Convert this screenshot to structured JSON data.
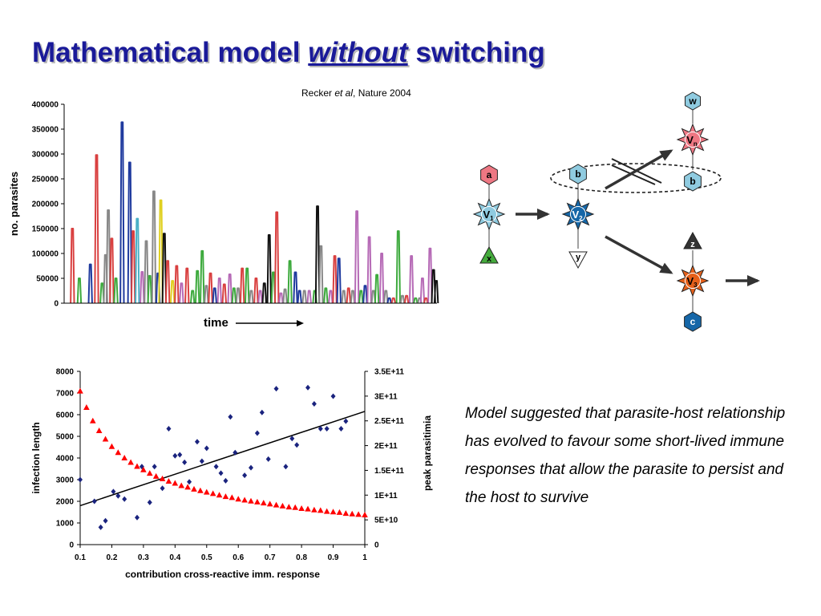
{
  "title": {
    "main": "Mathematical model ",
    "emph": "without",
    "tail": " switching"
  },
  "citation": {
    "author": "Recker ",
    "etal": "et al",
    "journal": ", Nature 2004"
  },
  "summary": "Model suggested that parasite-host relationship has evolved to favour some short-lived immune responses that allow the parasite to persist and the host to survive",
  "diagram": {
    "nodes": [
      {
        "id": "a",
        "label": "a",
        "color": "#ee7783",
        "shape": "hexagon"
      },
      {
        "id": "V1",
        "label": "V",
        "sub": "1",
        "color": "#8fcbe0",
        "shape": "star"
      },
      {
        "id": "x",
        "label": "x",
        "color": "#44aa3c",
        "shape": "triangle"
      },
      {
        "id": "b_left",
        "label": "b",
        "color": "#8fcbe0",
        "shape": "hexagon"
      },
      {
        "id": "V2",
        "label": "V",
        "sub": "2",
        "color": "#1667a8",
        "shape": "star"
      },
      {
        "id": "y",
        "label": "y",
        "color": "#ffffff",
        "shape": "triangle"
      },
      {
        "id": "w",
        "label": "w",
        "color": "#8fcbe0",
        "shape": "hexagon"
      },
      {
        "id": "Vn",
        "label": "V",
        "sub": "n",
        "color": "#ee7783",
        "shape": "star"
      },
      {
        "id": "b_right",
        "label": "b",
        "color": "#8fcbe0",
        "shape": "hexagon"
      },
      {
        "id": "z",
        "label": "z",
        "color": "#333333",
        "shape": "triangle"
      },
      {
        "id": "V3",
        "label": "V",
        "sub": "3",
        "color": "#e5601a",
        "shape": "star"
      },
      {
        "id": "c",
        "label": "c",
        "color": "#1667a8",
        "shape": "hexagon"
      }
    ]
  },
  "chart_data": [
    {
      "type": "line",
      "title": "",
      "xlabel": "time",
      "ylabel": "no. parasites",
      "ylim": [
        0,
        400000
      ],
      "yticks": [
        "400000",
        "350000",
        "300000",
        "250000",
        "200000",
        "150000",
        "100000",
        "50000",
        "0"
      ],
      "xrange": [
        0,
        540
      ],
      "peaks": [
        {
          "x": 12,
          "y": 150000,
          "color": "#d94040"
        },
        {
          "x": 22,
          "y": 50000,
          "color": "#3daa3d"
        },
        {
          "x": 38,
          "y": 78000,
          "color": "#1f3a9e"
        },
        {
          "x": 47,
          "y": 298000,
          "color": "#d94040"
        },
        {
          "x": 55,
          "y": 40000,
          "color": "#3daa3d"
        },
        {
          "x": 60,
          "y": 97000,
          "color": "#888888"
        },
        {
          "x": 64,
          "y": 187000,
          "color": "#888888"
        },
        {
          "x": 69,
          "y": 130000,
          "color": "#d94040"
        },
        {
          "x": 75,
          "y": 50000,
          "color": "#3daa3d"
        },
        {
          "x": 84,
          "y": 364000,
          "color": "#1f3a9e"
        },
        {
          "x": 95,
          "y": 283000,
          "color": "#1f3a9e"
        },
        {
          "x": 100,
          "y": 145000,
          "color": "#d94040"
        },
        {
          "x": 106,
          "y": 170000,
          "color": "#4ab0c6"
        },
        {
          "x": 113,
          "y": 63000,
          "color": "#b66ab6"
        },
        {
          "x": 119,
          "y": 125000,
          "color": "#888888"
        },
        {
          "x": 124,
          "y": 55000,
          "color": "#3daa3d"
        },
        {
          "x": 130,
          "y": 225000,
          "color": "#888888"
        },
        {
          "x": 136,
          "y": 60000,
          "color": "#1f3a9e"
        },
        {
          "x": 140,
          "y": 207000,
          "color": "#e0d020"
        },
        {
          "x": 145,
          "y": 140000,
          "color": "#111111"
        },
        {
          "x": 150,
          "y": 85000,
          "color": "#d94040"
        },
        {
          "x": 157,
          "y": 45000,
          "color": "#e0d020"
        },
        {
          "x": 163,
          "y": 75000,
          "color": "#d94040"
        },
        {
          "x": 170,
          "y": 40000,
          "color": "#b66ab6"
        },
        {
          "x": 178,
          "y": 70000,
          "color": "#d94040"
        },
        {
          "x": 186,
          "y": 25000,
          "color": "#3daa3d"
        },
        {
          "x": 193,
          "y": 65000,
          "color": "#3daa3d"
        },
        {
          "x": 200,
          "y": 105000,
          "color": "#3daa3d"
        },
        {
          "x": 206,
          "y": 35000,
          "color": "#888888"
        },
        {
          "x": 212,
          "y": 60000,
          "color": "#d94040"
        },
        {
          "x": 218,
          "y": 30000,
          "color": "#1f3a9e"
        },
        {
          "x": 225,
          "y": 50000,
          "color": "#b66ab6"
        },
        {
          "x": 232,
          "y": 38000,
          "color": "#d94040"
        },
        {
          "x": 240,
          "y": 58000,
          "color": "#b66ab6"
        },
        {
          "x": 246,
          "y": 30000,
          "color": "#3daa3d"
        },
        {
          "x": 252,
          "y": 30000,
          "color": "#888888"
        },
        {
          "x": 258,
          "y": 70000,
          "color": "#d94040"
        },
        {
          "x": 265,
          "y": 70000,
          "color": "#3daa3d"
        },
        {
          "x": 271,
          "y": 25000,
          "color": "#888888"
        },
        {
          "x": 278,
          "y": 50000,
          "color": "#d94040"
        },
        {
          "x": 284,
          "y": 25000,
          "color": "#b66ab6"
        },
        {
          "x": 290,
          "y": 40000,
          "color": "#111111"
        },
        {
          "x": 297,
          "y": 137000,
          "color": "#111111"
        },
        {
          "x": 303,
          "y": 62000,
          "color": "#3daa3d"
        },
        {
          "x": 308,
          "y": 183000,
          "color": "#d94040"
        },
        {
          "x": 314,
          "y": 20000,
          "color": "#b66ab6"
        },
        {
          "x": 320,
          "y": 28000,
          "color": "#888888"
        },
        {
          "x": 327,
          "y": 85000,
          "color": "#3daa3d"
        },
        {
          "x": 335,
          "y": 62000,
          "color": "#1f3a9e"
        },
        {
          "x": 341,
          "y": 25000,
          "color": "#1f3a9e"
        },
        {
          "x": 348,
          "y": 25000,
          "color": "#888888"
        },
        {
          "x": 355,
          "y": 25000,
          "color": "#b66ab6"
        },
        {
          "x": 363,
          "y": 25000,
          "color": "#3daa3d"
        },
        {
          "x": 367,
          "y": 195000,
          "color": "#111111"
        },
        {
          "x": 372,
          "y": 115000,
          "color": "#888888"
        },
        {
          "x": 379,
          "y": 30000,
          "color": "#3daa3d"
        },
        {
          "x": 386,
          "y": 25000,
          "color": "#b66ab6"
        },
        {
          "x": 392,
          "y": 95000,
          "color": "#d94040"
        },
        {
          "x": 398,
          "y": 90000,
          "color": "#1f3a9e"
        },
        {
          "x": 405,
          "y": 25000,
          "color": "#888888"
        },
        {
          "x": 412,
          "y": 30000,
          "color": "#d94040"
        },
        {
          "x": 418,
          "y": 25000,
          "color": "#888888"
        },
        {
          "x": 424,
          "y": 185000,
          "color": "#b66ab6"
        },
        {
          "x": 430,
          "y": 25000,
          "color": "#3daa3d"
        },
        {
          "x": 436,
          "y": 35000,
          "color": "#1f3a9e"
        },
        {
          "x": 442,
          "y": 133000,
          "color": "#b66ab6"
        },
        {
          "x": 448,
          "y": 25000,
          "color": "#888888"
        },
        {
          "x": 453,
          "y": 57000,
          "color": "#3daa3d"
        },
        {
          "x": 460,
          "y": 100000,
          "color": "#b66ab6"
        },
        {
          "x": 466,
          "y": 25000,
          "color": "#888888"
        },
        {
          "x": 471,
          "y": 10000,
          "color": "#1f3a9e"
        },
        {
          "x": 477,
          "y": 10000,
          "color": "#d94040"
        },
        {
          "x": 484,
          "y": 145000,
          "color": "#3daa3d"
        },
        {
          "x": 490,
          "y": 15000,
          "color": "#888888"
        },
        {
          "x": 496,
          "y": 15000,
          "color": "#d94040"
        },
        {
          "x": 503,
          "y": 95000,
          "color": "#b66ab6"
        },
        {
          "x": 509,
          "y": 10000,
          "color": "#3daa3d"
        },
        {
          "x": 515,
          "y": 10000,
          "color": "#888888"
        },
        {
          "x": 519,
          "y": 50000,
          "color": "#b66ab6"
        },
        {
          "x": 524,
          "y": 10000,
          "color": "#d94040"
        },
        {
          "x": 530,
          "y": 110000,
          "color": "#b66ab6"
        },
        {
          "x": 535,
          "y": 67000,
          "color": "#111111"
        },
        {
          "x": 539,
          "y": 45000,
          "color": "#111111"
        }
      ]
    },
    {
      "type": "scatter",
      "title": "",
      "xlabel": "contribution cross-reactive imm. response",
      "ylabel": "infection length",
      "y2label": "peak parasitimia",
      "xlim": [
        0.1,
        1
      ],
      "ylim": [
        0,
        8000
      ],
      "y2lim": [
        0,
        350000000000
      ],
      "xticks": [
        "0.1",
        "0.2",
        "0.3",
        "0.4",
        "0.5",
        "0.6",
        "0.7",
        "0.8",
        "0.9",
        "1"
      ],
      "yticks": [
        "0",
        "1000",
        "2000",
        "3000",
        "4000",
        "5000",
        "6000",
        "7000",
        "8000"
      ],
      "y2ticks": [
        "0",
        "5E+10",
        "1E+11",
        "1.5E+11",
        "2E+11",
        "2.5E+11",
        "3E+11",
        "3.5E+11"
      ],
      "trendline": {
        "x": [
          0.1,
          1.0
        ],
        "y": [
          1800,
          6150
        ]
      },
      "series": [
        {
          "axis": "left",
          "marker": "diamond",
          "color": "#1a237e",
          "points": [
            [
              0.1,
              3000
            ],
            [
              0.145,
              2000
            ],
            [
              0.165,
              800
            ],
            [
              0.18,
              1100
            ],
            [
              0.205,
              2450
            ],
            [
              0.22,
              2250
            ],
            [
              0.24,
              2100
            ],
            [
              0.28,
              1250
            ],
            [
              0.295,
              3600
            ],
            [
              0.32,
              1950
            ],
            [
              0.335,
              3600
            ],
            [
              0.36,
              2600
            ],
            [
              0.38,
              5350
            ],
            [
              0.4,
              4100
            ],
            [
              0.415,
              4150
            ],
            [
              0.43,
              3800
            ],
            [
              0.445,
              2900
            ],
            [
              0.47,
              4750
            ],
            [
              0.485,
              3850
            ],
            [
              0.5,
              4450
            ],
            [
              0.53,
              3600
            ],
            [
              0.545,
              3300
            ],
            [
              0.56,
              2950
            ],
            [
              0.575,
              5900
            ],
            [
              0.59,
              4250
            ],
            [
              0.62,
              3200
            ],
            [
              0.64,
              3550
            ],
            [
              0.66,
              5150
            ],
            [
              0.675,
              6100
            ],
            [
              0.695,
              3950
            ],
            [
              0.72,
              7200
            ],
            [
              0.75,
              3600
            ],
            [
              0.77,
              4900
            ],
            [
              0.785,
              4600
            ],
            [
              0.82,
              7250
            ],
            [
              0.84,
              6500
            ],
            [
              0.86,
              5350
            ],
            [
              0.88,
              5350
            ],
            [
              0.9,
              6850
            ],
            [
              0.925,
              5350
            ],
            [
              0.94,
              5700
            ]
          ]
        },
        {
          "axis": "right",
          "marker": "triangle",
          "color": "#ff0000",
          "points": [
            [
              0.1,
              310000000000
            ],
            [
              0.12,
              277000000000
            ],
            [
              0.14,
              250000000000
            ],
            [
              0.16,
              230000000000
            ],
            [
              0.18,
              213000000000
            ],
            [
              0.2,
              198000000000
            ],
            [
              0.22,
              186000000000
            ],
            [
              0.24,
              175000000000
            ],
            [
              0.26,
              166000000000
            ],
            [
              0.28,
              158000000000
            ],
            [
              0.3,
              151000000000
            ],
            [
              0.32,
              144000000000
            ],
            [
              0.34,
              138000000000
            ],
            [
              0.36,
              133000000000
            ],
            [
              0.38,
              128000000000
            ],
            [
              0.4,
              124000000000
            ],
            [
              0.42,
              119000000000
            ],
            [
              0.44,
              116000000000
            ],
            [
              0.46,
              112000000000
            ],
            [
              0.48,
              109000000000
            ],
            [
              0.5,
              106000000000
            ],
            [
              0.52,
              103000000000
            ],
            [
              0.54,
              100000000000
            ],
            [
              0.56,
              97000000000
            ],
            [
              0.58,
              95000000000
            ],
            [
              0.6,
              92000000000
            ],
            [
              0.62,
              90000000000
            ],
            [
              0.64,
              88000000000
            ],
            [
              0.66,
              86000000000
            ],
            [
              0.68,
              84000000000
            ],
            [
              0.7,
              82000000000
            ],
            [
              0.72,
              80000000000
            ],
            [
              0.74,
              78000000000
            ],
            [
              0.76,
              76000000000
            ],
            [
              0.78,
              75000000000
            ],
            [
              0.8,
              73000000000
            ],
            [
              0.82,
              72000000000
            ],
            [
              0.84,
              70000000000
            ],
            [
              0.86,
              69000000000
            ],
            [
              0.88,
              67000000000
            ],
            [
              0.9,
              66000000000
            ],
            [
              0.92,
              65000000000
            ],
            [
              0.94,
              63000000000
            ],
            [
              0.96,
              62000000000
            ],
            [
              0.98,
              61000000000
            ],
            [
              1.0,
              60000000000
            ]
          ]
        }
      ]
    }
  ]
}
